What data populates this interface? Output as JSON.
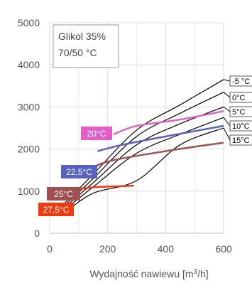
{
  "chart_data": {
    "type": "line",
    "xlabel_main": "Wydajność nawiewu [m",
    "xlabel_sup": "3",
    "xlabel_end": "/h]",
    "ylabel": "",
    "xlim": [
      0,
      600
    ],
    "ylim": [
      0,
      5000
    ],
    "x_ticks": [
      "0",
      "200",
      "400",
      "600"
    ],
    "y_ticks": [
      "0",
      "1000",
      "2000",
      "3000",
      "4000",
      "5000"
    ],
    "grid": true,
    "annotation": [
      "Glikol 35%",
      "70/50 °C"
    ],
    "curve_labels": [
      "-5 °C",
      "0°C",
      "5°C",
      "10°C",
      "15°C"
    ],
    "curves": [
      {
        "label": "-5 °C",
        "x": [
          50,
          150,
          300,
          450,
          600
        ],
        "y": [
          700,
          1400,
          2450,
          3050,
          3650
        ]
      },
      {
        "label": "0°C",
        "x": [
          50,
          150,
          300,
          450,
          600
        ],
        "y": [
          650,
          1300,
          2300,
          2850,
          3350
        ]
      },
      {
        "label": "5°C",
        "x": [
          50,
          150,
          300,
          450,
          600
        ],
        "y": [
          600,
          1200,
          2100,
          2600,
          3000
        ]
      },
      {
        "label": "10°C",
        "x": [
          50,
          150,
          300,
          450,
          600
        ],
        "y": [
          550,
          1100,
          1900,
          2350,
          2750
        ]
      },
      {
        "label": "15°C",
        "x": [
          50,
          150,
          300,
          450,
          600
        ],
        "y": [
          480,
          950,
          1250,
          2100,
          2500
        ]
      }
    ],
    "series": [
      {
        "name": "20°C",
        "color": "#e060c8",
        "x": [
          220,
          300,
          450,
          600
        ],
        "y": [
          2350,
          2550,
          2700,
          2900
        ]
      },
      {
        "name": "22,5°C",
        "color": "#5860c0",
        "x": [
          165,
          250,
          400,
          600
        ],
        "y": [
          1950,
          2100,
          2300,
          2550
        ]
      },
      {
        "name": "25°C",
        "color": "#a05050",
        "x": [
          108,
          200,
          400,
          600
        ],
        "y": [
          1400,
          1700,
          1950,
          2150
        ]
      },
      {
        "name": "27,5°C",
        "color": "#ee3a10",
        "x": [
          78,
          150,
          250,
          290
        ],
        "y": [
          1030,
          1090,
          1120,
          1130
        ]
      }
    ]
  }
}
